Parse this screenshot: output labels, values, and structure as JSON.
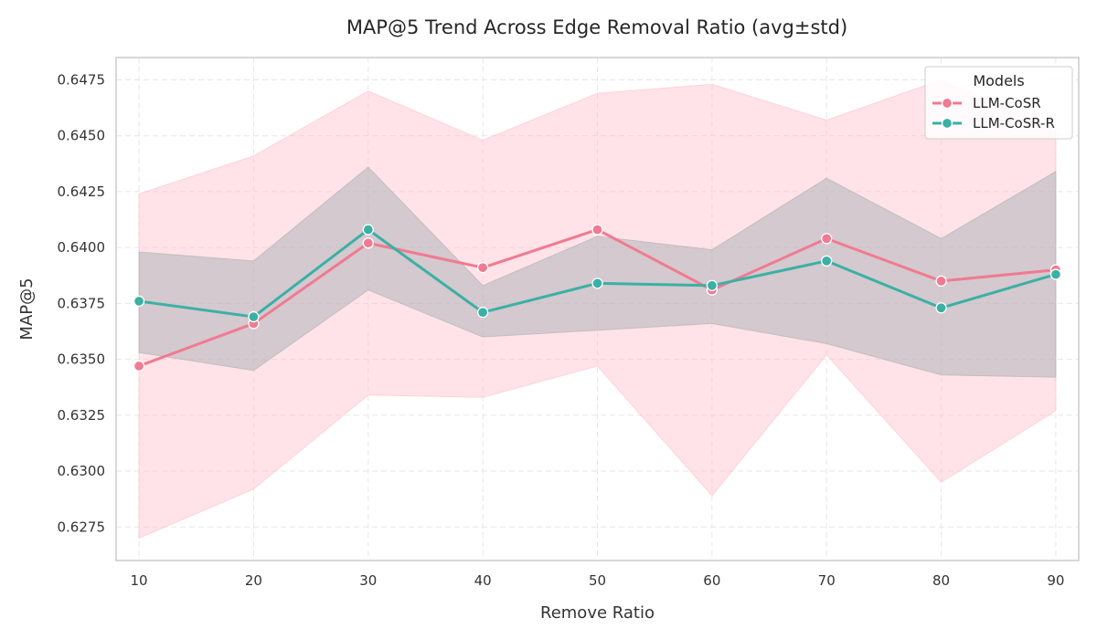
{
  "chart_data": {
    "type": "line",
    "title": "MAP@5 Trend Across Edge Removal Ratio (avg±std)",
    "xlabel": "Remove Ratio",
    "ylabel": "MAP@5",
    "x": [
      10,
      20,
      30,
      40,
      50,
      60,
      70,
      80,
      90
    ],
    "xlim": [
      8,
      92
    ],
    "ylim": [
      0.626,
      0.6485
    ],
    "yticks": [
      0.6275,
      0.63,
      0.6325,
      0.635,
      0.6375,
      0.64,
      0.6425,
      0.645,
      0.6475
    ],
    "ytick_labels": [
      "0.6275",
      "0.6300",
      "0.6325",
      "0.6350",
      "0.6375",
      "0.6400",
      "0.6425",
      "0.6450",
      "0.6475"
    ],
    "grid": true,
    "legend": {
      "title": "Models",
      "position": "top-right"
    },
    "series": [
      {
        "name": "LLM-CoSR",
        "color": "#f07a92",
        "band_color": "#ffc0cb",
        "values": [
          0.6347,
          0.6366,
          0.6402,
          0.6391,
          0.6408,
          0.6381,
          0.6404,
          0.6385,
          0.639
        ],
        "lower": [
          0.627,
          0.6292,
          0.6334,
          0.6333,
          0.6347,
          0.6289,
          0.6352,
          0.6295,
          0.6327
        ],
        "upper": [
          0.6424,
          0.6441,
          0.647,
          0.6448,
          0.6469,
          0.6473,
          0.6457,
          0.6475,
          0.6453
        ]
      },
      {
        "name": "LLM-CoSR-R",
        "color": "#3bb0a5",
        "band_color": "#a9b0b3",
        "values": [
          0.6376,
          0.6369,
          0.6408,
          0.6371,
          0.6384,
          0.6383,
          0.6394,
          0.6373,
          0.6388
        ],
        "lower": [
          0.6353,
          0.6345,
          0.6381,
          0.636,
          0.6363,
          0.6366,
          0.6357,
          0.6343,
          0.6342
        ],
        "upper": [
          0.6398,
          0.6394,
          0.6436,
          0.6383,
          0.6405,
          0.6399,
          0.6431,
          0.6404,
          0.6434
        ]
      }
    ]
  }
}
